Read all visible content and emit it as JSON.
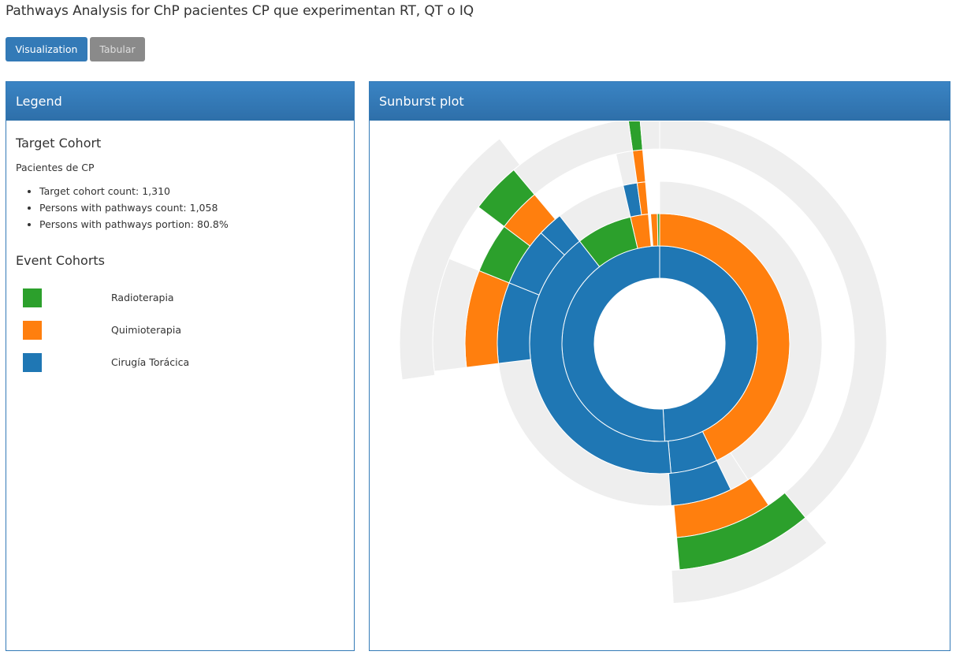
{
  "page_title": "Pathways Analysis for ChP pacientes CP que experimentan RT, QT o IQ",
  "tabs": [
    {
      "label": "Visualization",
      "active": true
    },
    {
      "label": "Tabular",
      "active": false
    }
  ],
  "legend": {
    "heading": "Legend",
    "target_title": "Target Cohort",
    "target_name": "Pacientes de CP",
    "stats": [
      "Target cohort count: 1,310",
      "Persons with pathways count: 1,058",
      "Persons with pathways portion: 80.8%"
    ],
    "events_title": "Event Cohorts",
    "events": [
      {
        "label": "Radioterapia",
        "color": "#2ca02c"
      },
      {
        "label": "Quimioterapia",
        "color": "#ff7f0e"
      },
      {
        "label": "Cirugía Torácica",
        "color": "#1f77b4"
      }
    ]
  },
  "sunburst": {
    "heading": "Sunburst plot",
    "colors": {
      "rt": "#2ca02c",
      "qt": "#ff7f0e",
      "iq": "#1f77b4",
      "end": "#eeeeee"
    }
  }
}
